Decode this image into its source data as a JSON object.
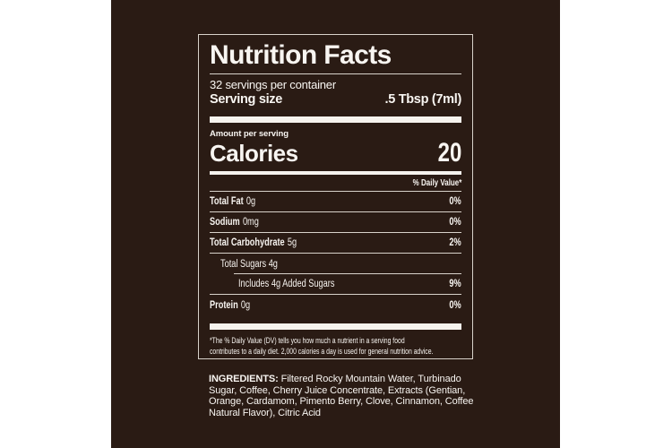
{
  "label": {
    "title": "Nutrition Facts",
    "servings_per_container": "32 servings per container",
    "serving_size_label": "Serving size",
    "serving_size_value": ".5 Tbsp (7ml)",
    "amount_per_serving": "Amount per serving",
    "calories_label": "Calories",
    "calories_value": "20",
    "daily_value_header": "% Daily Value*",
    "rows": [
      {
        "name": "Total Fat",
        "amount": "0g",
        "dv": "0%"
      },
      {
        "name": "Sodium",
        "amount": "0mg",
        "dv": "0%"
      },
      {
        "name": "Total Carbohydrate",
        "amount": "5g",
        "dv": "2%"
      },
      {
        "name": "Total Sugars 4g",
        "amount": "",
        "dv": ""
      },
      {
        "name": "Includes 4g Added Sugars",
        "amount": "",
        "dv": "9%"
      },
      {
        "name": "Protein",
        "amount": "0g",
        "dv": "0%"
      }
    ],
    "footnote_lines": [
      "*The % Daily Value (DV) tells you how much a nutrient in a serving food",
      "contributes to a daily diet. 2,000 calories a day is used for general nutrition advice."
    ]
  },
  "ingredients": {
    "label": "INGREDIENTS:",
    "line1_rest": " Filtered Rocky Mountain Water, Turbinado",
    "line2": "Sugar, Coffee, Cherry Juice Concentrate, Extracts (Gentian,",
    "line3": "Orange, Cardamom, Pimento Berry, Clove, Cinnamon, Coffee",
    "line4": "Natural Flavor), Citric Acid"
  },
  "colors": {
    "background": "#ffffff",
    "panel": "#2a1b14",
    "text": "#f8f5f1",
    "rule": "#d8d2ca"
  }
}
